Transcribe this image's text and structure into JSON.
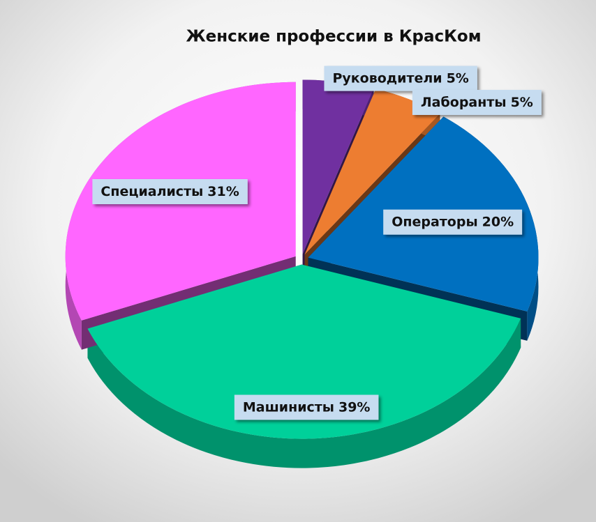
{
  "chart_data": {
    "type": "pie",
    "title": "Женские професcии в КрасКом",
    "categories": [
      "Руководители",
      "Лаборанты",
      "Операторы",
      "Машинисты",
      "Специалисты"
    ],
    "values": [
      5,
      5,
      20,
      39,
      31
    ],
    "value_labels": [
      "5%",
      "5%",
      "20%",
      "39%",
      "31%"
    ],
    "colors": [
      "#7030a0",
      "#ed7d31",
      "#0070c0",
      "#00d09a",
      "#ff66ff"
    ]
  }
}
